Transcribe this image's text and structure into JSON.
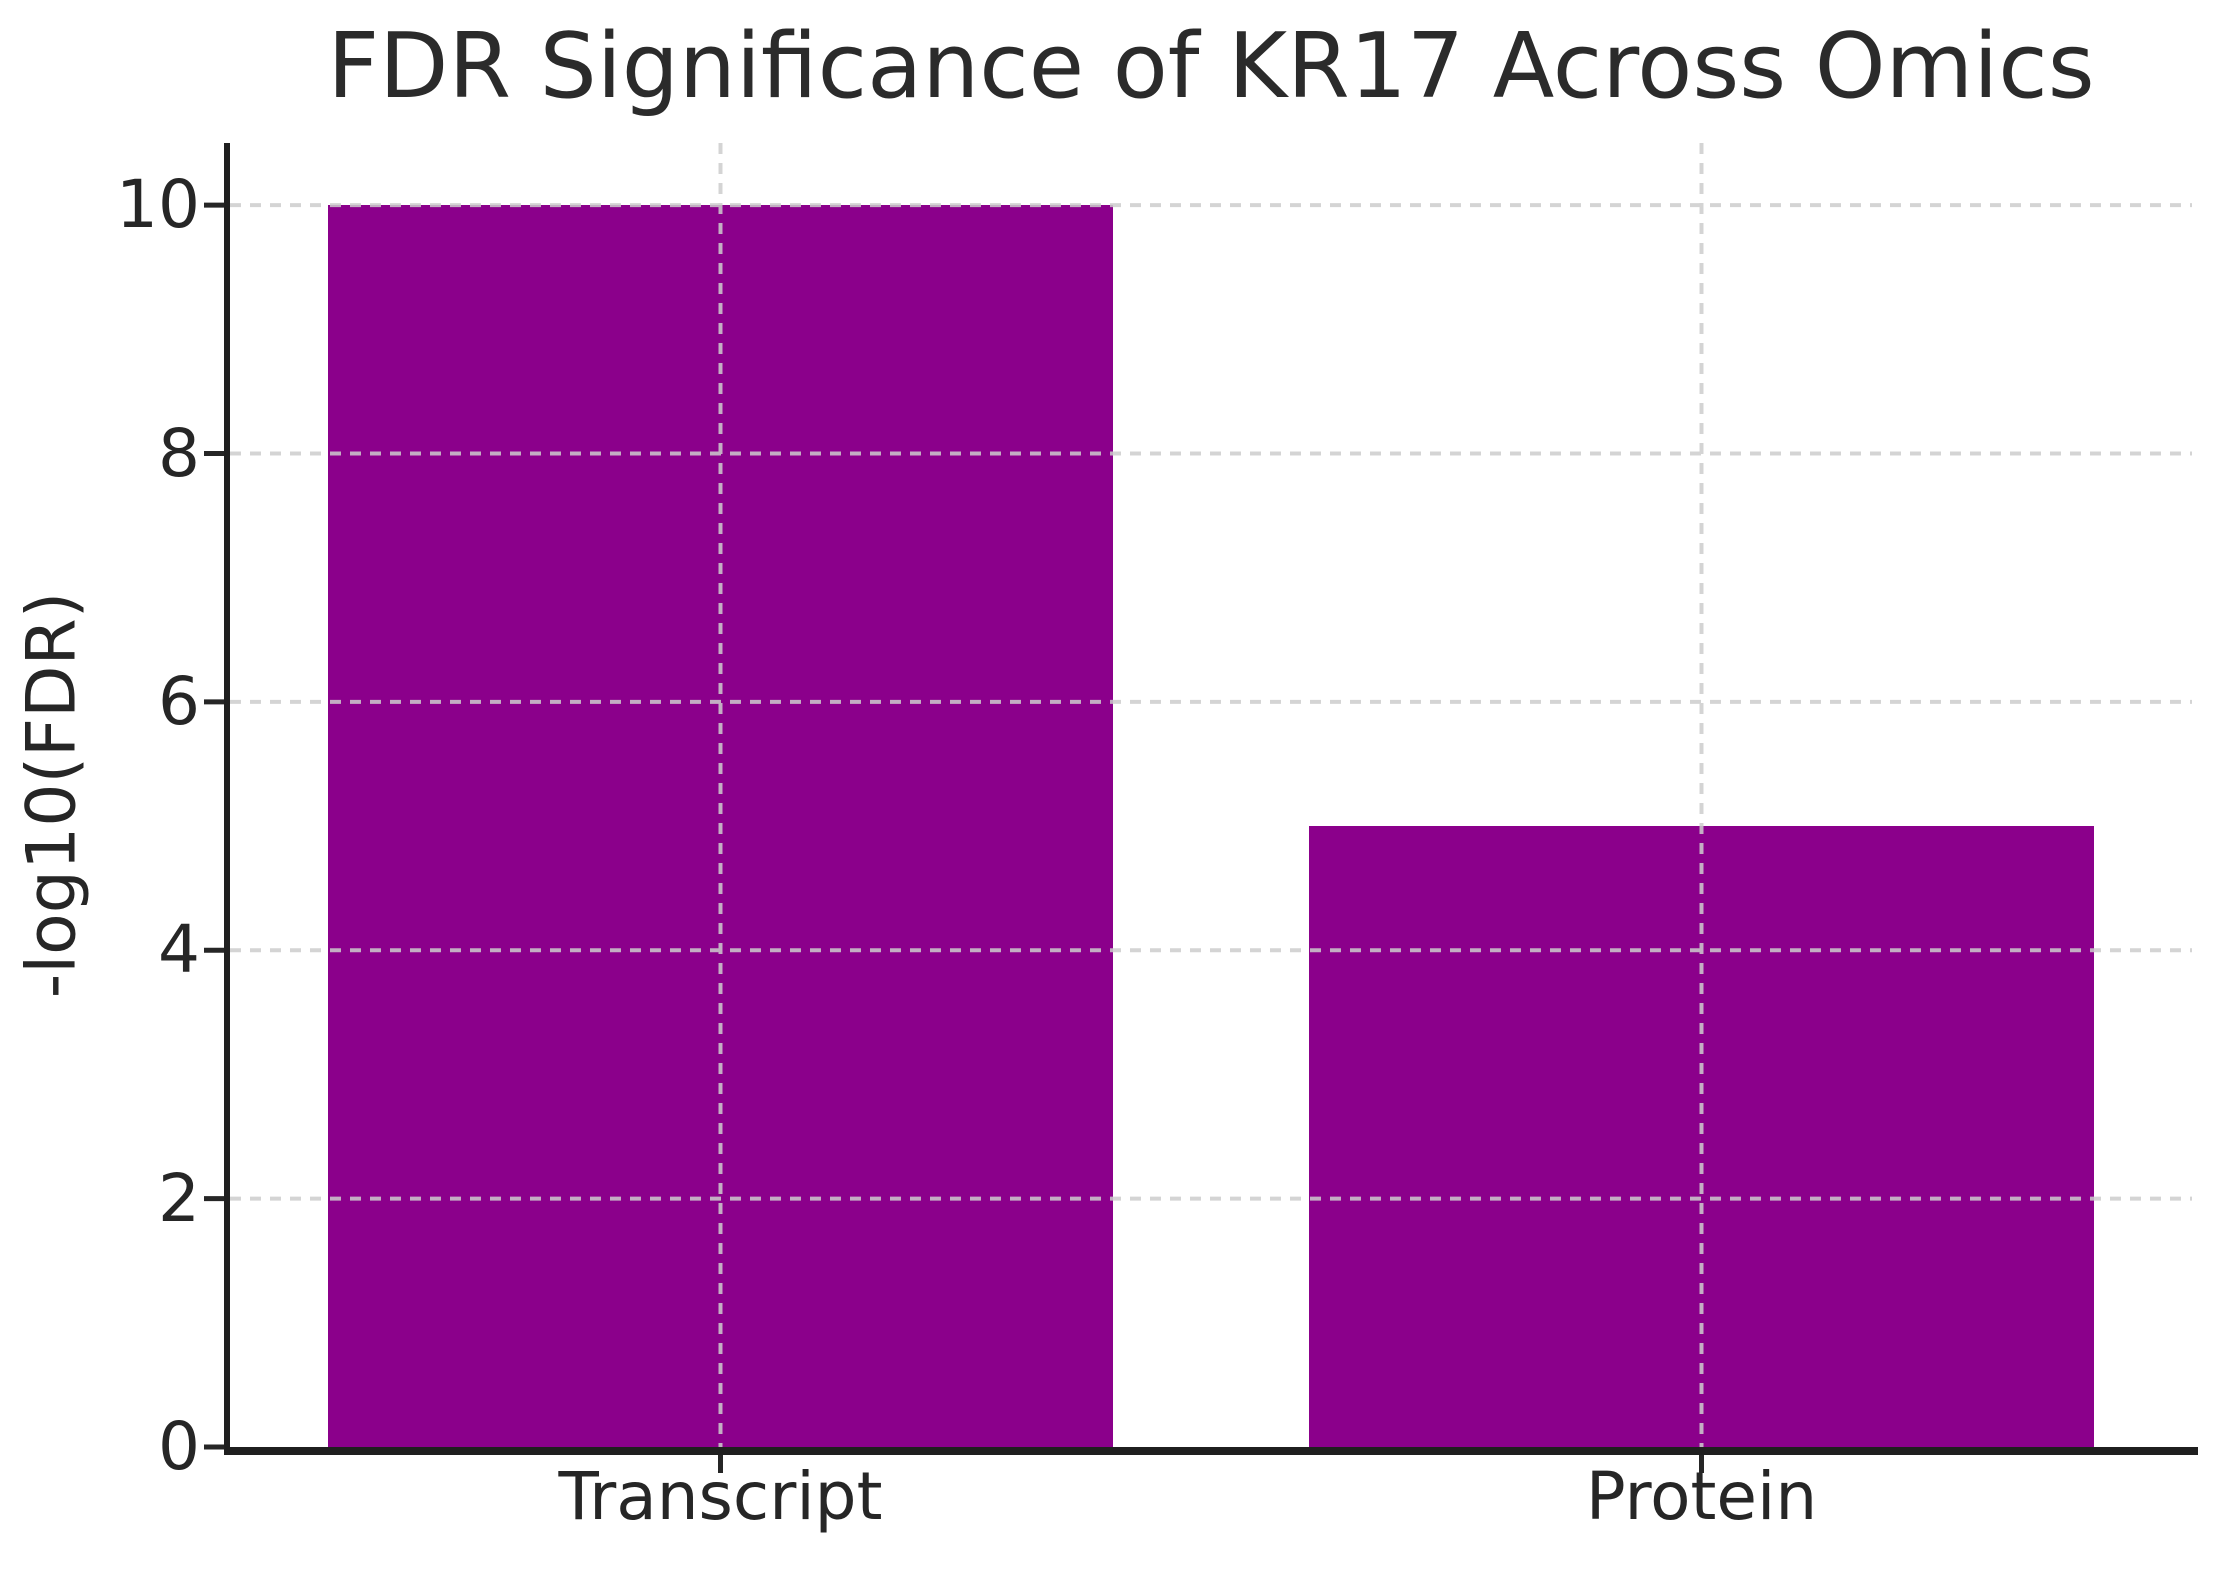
{
  "title": "FDR Significance of KR17 Across Omics",
  "chart_data": {
    "type": "bar",
    "categories": [
      "Transcript",
      "Protein"
    ],
    "values": [
      10,
      5
    ],
    "title": "FDR Significance of KR17 Across Omics",
    "xlabel": "",
    "ylabel": "-log10(FDR)",
    "ylim": [
      0,
      10.5
    ],
    "yticks": [
      0,
      2,
      4,
      6,
      8,
      10
    ],
    "grid": "dashed, drawn over bars",
    "legend": false,
    "bar_width_fraction": 0.8,
    "colors": {
      "bar": "#8B008B",
      "grid": "#cdcdcd",
      "spine": "#1f1f1f",
      "tick": "#262626",
      "text": "#2b2b2b",
      "background": "#ffffff"
    }
  }
}
